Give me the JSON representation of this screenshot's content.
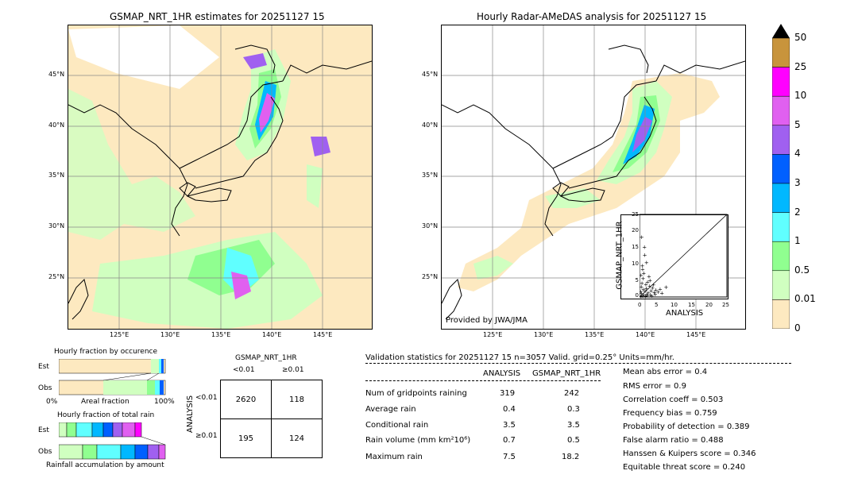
{
  "left_map": {
    "title": "GSMAP_NRT_1HR estimates for 20251127 15",
    "lat_ticks": [
      "45°N",
      "40°N",
      "35°N",
      "30°N",
      "25°N"
    ],
    "lon_ticks": [
      "125°E",
      "130°E",
      "135°E",
      "140°E",
      "145°E"
    ]
  },
  "right_map": {
    "title": "Hourly Radar-AMeDAS analysis for 20251127 15",
    "lat_ticks": [
      "45°N",
      "40°N",
      "35°N",
      "30°N",
      "25°N"
    ],
    "lon_ticks": [
      "125°E",
      "130°E",
      "135°E",
      "140°E",
      "145°E"
    ],
    "credit": "Provided by JWA/JMA"
  },
  "colorbar": {
    "labels": [
      "50",
      "25",
      "10",
      "5",
      "4",
      "3",
      "2",
      "1",
      "0.5",
      "0.01",
      "0"
    ],
    "colors": [
      "#c8943c",
      "#ff00ff",
      "#e060f0",
      "#a060f0",
      "#0060ff",
      "#00b8ff",
      "#60ffff",
      "#90ff90",
      "#d0ffc0",
      "#fde9c0"
    ]
  },
  "scatter": {
    "ylabel": "GSMAP_NRT_1HR",
    "xlabel": "ANALYSIS",
    "ticks": [
      "0",
      "5",
      "10",
      "15",
      "20",
      "25"
    ]
  },
  "occurrence": {
    "title": "Hourly fraction by occurence",
    "rows": [
      "Est",
      "Obs"
    ],
    "axis_left": "0%",
    "axis_mid": "Areal fraction",
    "axis_right": "100%"
  },
  "total_rain": {
    "title": "Hourly fraction of total rain",
    "rows": [
      "Est",
      "Obs"
    ],
    "axis_label": "Rainfall accumulation by amount"
  },
  "contingency": {
    "title": "GSMAP_NRT_1HR",
    "col_labels": [
      "<0.01",
      "≥0.01"
    ],
    "row_axis": "ANALYSIS",
    "row_labels": [
      "<0.01",
      "≥0.01"
    ],
    "cells": [
      [
        "2620",
        "118"
      ],
      [
        "195",
        "124"
      ]
    ]
  },
  "validation": {
    "header": "Validation statistics for 20251127 15  n=3057 Valid. grid=0.25° Units=mm/hr.",
    "col_analysis": "ANALYSIS",
    "col_gsmap": "GSMAP_NRT_1HR",
    "rows": [
      {
        "label": "Num of gridpoints raining",
        "a": "319",
        "g": "242"
      },
      {
        "label": "Average rain",
        "a": "0.4",
        "g": "0.3"
      },
      {
        "label": "Conditional rain",
        "a": "3.5",
        "g": "3.5"
      },
      {
        "label": "Rain volume (mm km²10⁶)",
        "a": "0.7",
        "g": "0.5"
      },
      {
        "label": "Maximum rain",
        "a": "7.5",
        "g": "18.2"
      }
    ],
    "scores": [
      "Mean abs error =    0.4",
      "RMS error =    0.9",
      "Correlation coeff =  0.503",
      "Frequency bias =  0.759",
      "Probability of detection =  0.389",
      "False alarm ratio =  0.488",
      "Hanssen & Kuipers score =  0.346",
      "Equitable threat score =  0.240"
    ]
  },
  "chart_data": {
    "type": "scatter",
    "title": "",
    "xlabel": "ANALYSIS",
    "ylabel": "GSMAP_NRT_1HR",
    "xlim": [
      0,
      25
    ],
    "ylim": [
      0,
      25
    ],
    "points": [
      [
        0.3,
        0.2
      ],
      [
        0.5,
        1.1
      ],
      [
        0.8,
        0.4
      ],
      [
        1.0,
        2.3
      ],
      [
        1.2,
        0.6
      ],
      [
        0.4,
        3.1
      ],
      [
        1.5,
        1.8
      ],
      [
        2.0,
        0.9
      ],
      [
        0.6,
        4.2
      ],
      [
        1.8,
        2.7
      ],
      [
        2.4,
        1.3
      ],
      [
        0.9,
        5.6
      ],
      [
        1.1,
        7.2
      ],
      [
        2.8,
        3.4
      ],
      [
        3.2,
        1.9
      ],
      [
        0.7,
        9.5
      ],
      [
        1.4,
        12.8
      ],
      [
        2.2,
        4.6
      ],
      [
        3.6,
        2.8
      ],
      [
        4.1,
        1.5
      ],
      [
        0.5,
        18.2
      ],
      [
        1.3,
        15.1
      ],
      [
        0.8,
        8.4
      ],
      [
        2.6,
        6.3
      ],
      [
        3.9,
        3.7
      ],
      [
        4.6,
        2.2
      ],
      [
        5.2,
        1.6
      ],
      [
        1.9,
        10.4
      ],
      [
        0.3,
        6.6
      ],
      [
        2.1,
        0.5
      ],
      [
        3.0,
        0.7
      ],
      [
        4.4,
        0.9
      ],
      [
        5.8,
        2.4
      ],
      [
        6.3,
        1.2
      ],
      [
        7.5,
        3.0
      ],
      [
        1.6,
        0.3
      ],
      [
        0.2,
        1.7
      ],
      [
        1.7,
        3.9
      ],
      [
        2.9,
        5.1
      ],
      [
        3.4,
        0.4
      ]
    ]
  }
}
